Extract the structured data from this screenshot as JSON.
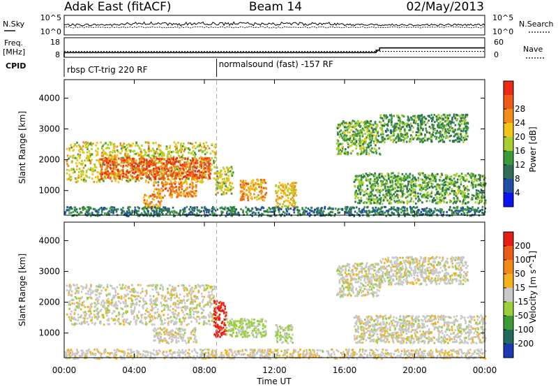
{
  "header": {
    "station": "Adak East (fitACF)",
    "beam": "Beam 14",
    "date": "02/May/2013"
  },
  "top_panels": {
    "nsky_label": "N.Sky",
    "nsky_tick_top": "10^5",
    "nsky_tick_bottom": "10^0",
    "nsearch_label": "N.Search",
    "nsearch_tick_top": "10^5",
    "nsearch_tick_bottom": "10^0",
    "freq_label_line1": "Freq.",
    "freq_label_line2": "[MHz]",
    "freq_tick_top": "18",
    "freq_tick_bottom": "8",
    "nave_label": "Nave",
    "nave_tick_top": "60",
    "nave_tick_bottom": "0",
    "cpid_label": "CPID",
    "cpid_segments": [
      {
        "start_hour": 0,
        "end_hour": 8.7,
        "label": "rbsp CT-trig 220 RF"
      },
      {
        "start_hour": 8.7,
        "end_hour": 24,
        "label": "normalsound (fast) -157 RF"
      }
    ],
    "freq_steps": [
      {
        "from_hour": 0,
        "to_hour": 17.8,
        "mhz": 10.4
      },
      {
        "from_hour": 17.8,
        "to_hour": 18.0,
        "mhz": 11.6
      },
      {
        "from_hour": 18.0,
        "to_hour": 24,
        "mhz": 12.8
      }
    ],
    "nave_level": 18
  },
  "chart_data": [
    {
      "type": "heatmap",
      "name": "power-panel",
      "ylabel": "Slant Range [km]",
      "xlabel": "",
      "x_range_hours": [
        0,
        24
      ],
      "ylim": [
        200,
        4600
      ],
      "y_ticks": [
        1000,
        2000,
        3000,
        4000
      ],
      "colorbar": {
        "label": "Power [dB]",
        "ticks": [
          "4",
          "8",
          "12",
          "16",
          "20",
          "24",
          "28"
        ],
        "colors": [
          "#0a14ee",
          "#1f4fa8",
          "#2f6f58",
          "#3d9a3a",
          "#a6cf2f",
          "#f5c418",
          "#f28d18",
          "#ef5a18",
          "#ec2a15"
        ],
        "min": 0,
        "max": 32
      },
      "regions": [
        {
          "t0": 0.1,
          "t1": 8.6,
          "r0": 1300,
          "r1": 2600,
          "v": 18
        },
        {
          "t0": 2.0,
          "t1": 8.3,
          "r0": 1400,
          "r1": 2100,
          "v": 27
        },
        {
          "t0": 5.0,
          "t1": 7.5,
          "r0": 800,
          "r1": 1300,
          "v": 24
        },
        {
          "t0": 4.5,
          "t1": 5.5,
          "r0": 450,
          "r1": 900,
          "v": 22
        },
        {
          "t0": 8.6,
          "t1": 9.6,
          "r0": 900,
          "r1": 1800,
          "v": 17
        },
        {
          "t0": 10.0,
          "t1": 11.5,
          "r0": 700,
          "r1": 1400,
          "v": 22
        },
        {
          "t0": 12.0,
          "t1": 13.2,
          "r0": 500,
          "r1": 1300,
          "v": 20
        },
        {
          "t0": 15.5,
          "t1": 18.0,
          "r0": 2200,
          "r1": 3300,
          "v": 14
        },
        {
          "t0": 16.5,
          "t1": 24,
          "r0": 600,
          "r1": 1600,
          "v": 13
        },
        {
          "t0": 18.0,
          "t1": 23.0,
          "r0": 2600,
          "r1": 3500,
          "v": 12
        },
        {
          "t0": 0,
          "t1": 24,
          "r0": 200,
          "r1": 500,
          "v": 9
        }
      ]
    },
    {
      "type": "heatmap",
      "name": "velocity-panel",
      "ylabel": "Slant Range [km]",
      "xlabel": "Time UT",
      "x_ticks": [
        "00:00",
        "04:00",
        "08:00",
        "12:00",
        "16:00",
        "20:00",
        "00:00"
      ],
      "x_range_hours": [
        0,
        24
      ],
      "ylim": [
        200,
        4600
      ],
      "y_ticks": [
        1000,
        2000,
        3000,
        4000
      ],
      "colorbar": {
        "label": "Velocity [m s^-1]",
        "ticks": [
          "200",
          "100",
          "50",
          "15",
          "-15",
          "-50",
          "-100",
          "-200"
        ],
        "colors": [
          "#1a3ab5",
          "#246a5c",
          "#3c9b36",
          "#98d03c",
          "#c8c8c8",
          "#f5b21a",
          "#f28a18",
          "#ec5a17",
          "#e81e14"
        ],
        "min": -250,
        "max": 250
      },
      "regions": [
        {
          "t0": 0.1,
          "t1": 8.6,
          "r0": 1300,
          "r1": 2600,
          "v": 0
        },
        {
          "t0": 5.0,
          "t1": 7.5,
          "r0": 700,
          "r1": 1200,
          "v": 0
        },
        {
          "t0": 8.5,
          "t1": 9.2,
          "r0": 900,
          "r1": 2100,
          "v": 220
        },
        {
          "t0": 9.2,
          "t1": 11.5,
          "r0": 900,
          "r1": 1500,
          "v": -40
        },
        {
          "t0": 12.0,
          "t1": 13.0,
          "r0": 700,
          "r1": 1300,
          "v": -30
        },
        {
          "t0": 15.5,
          "t1": 18.0,
          "r0": 2200,
          "r1": 3300,
          "v": 0
        },
        {
          "t0": 16.5,
          "t1": 24,
          "r0": 700,
          "r1": 1600,
          "v": 0
        },
        {
          "t0": 18.0,
          "t1": 23.0,
          "r0": 2600,
          "r1": 3500,
          "v": 0
        },
        {
          "t0": 0,
          "t1": 24,
          "r0": 200,
          "r1": 500,
          "v": 10
        }
      ]
    }
  ]
}
